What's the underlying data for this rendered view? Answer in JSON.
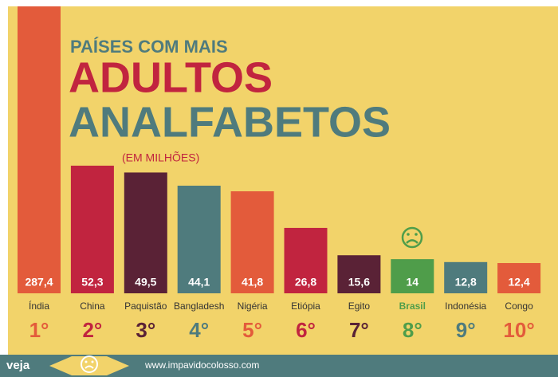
{
  "chart_data": {
    "type": "bar",
    "title_line1": "PAÍSES COM MAIS",
    "title_line2": "ADULTOS",
    "title_line3": "ANALFABETOS",
    "subtitle": "(EM MILHÕES)",
    "categories": [
      "Índia",
      "China",
      "Paquistão",
      "Bangladesh",
      "Nigéria",
      "Etiópia",
      "Egito",
      "Brasil",
      "Indonésia",
      "Congo"
    ],
    "values": [
      287.4,
      52.3,
      49.5,
      44.1,
      41.8,
      26.8,
      15.6,
      14,
      12.8,
      12.4
    ],
    "value_labels": [
      "287,4",
      "52,3",
      "49,5",
      "44,1",
      "41,8",
      "26,8",
      "15,6",
      "14",
      "12,8",
      "12,4"
    ],
    "ranks": [
      "1°",
      "2°",
      "3°",
      "4°",
      "5°",
      "6°",
      "7°",
      "8°",
      "9°",
      "10°"
    ],
    "colors": [
      "#e35b3b",
      "#c1243f",
      "#5a2236",
      "#4f7b7d",
      "#e35b3b",
      "#c1243f",
      "#5a2236",
      "#4f9d4a",
      "#4f7b7d",
      "#e35b3b"
    ],
    "ylim": [
      0,
      113
    ],
    "footer_brand": "veja",
    "footer_url": "www.impavidocolosso.com"
  }
}
